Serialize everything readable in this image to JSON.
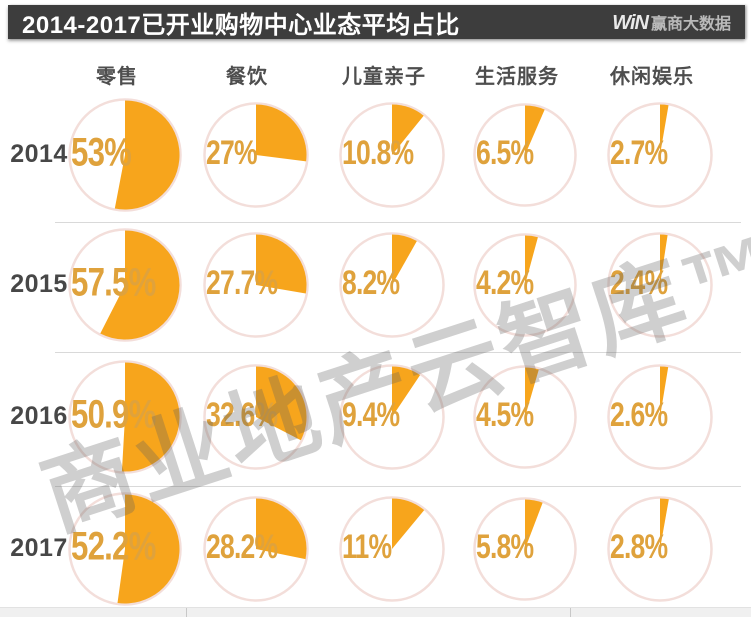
{
  "banner": {
    "title": "2014-2017已开业购物中心业态平均占比",
    "logo": {
      "win": "WiN",
      "brand": "赢商大数据"
    }
  },
  "watermark": "商业地产云智库™",
  "chart_data": {
    "type": "pie",
    "title": "2014-2017已开业购物中心业态平均占比",
    "unit": "%",
    "legend_position": "none",
    "grid": "off",
    "categories": [
      "零售",
      "餐饮",
      "儿童亲子",
      "生活服务",
      "休闲娱乐"
    ],
    "rows": [
      {
        "year": "2014",
        "values": [
          53,
          27,
          10.8,
          6.5,
          2.7
        ],
        "labels": [
          "53%",
          "27%",
          "10.8%",
          "6.5%",
          "2.7%"
        ]
      },
      {
        "year": "2015",
        "values": [
          57.5,
          27.7,
          8.2,
          4.2,
          2.4
        ],
        "labels": [
          "57.5%",
          "27.7%",
          "8.2%",
          "4.2%",
          "2.4%"
        ]
      },
      {
        "year": "2016",
        "values": [
          50.9,
          32.6,
          9.4,
          4.5,
          2.6
        ],
        "labels": [
          "50.9%",
          "32.6%",
          "9.4%",
          "4.5%",
          "2.6%"
        ]
      },
      {
        "year": "2017",
        "values": [
          52.2,
          28.2,
          11,
          5.8,
          2.8
        ],
        "labels": [
          "52.2%",
          "28.2%",
          "11%",
          "5.8%",
          "2.8%"
        ]
      }
    ],
    "colors": {
      "slice": "#F7A51C",
      "value_label": "#DFA23C",
      "ring": "#F3DEDA",
      "banner_bg": "#3D3D3D"
    }
  }
}
